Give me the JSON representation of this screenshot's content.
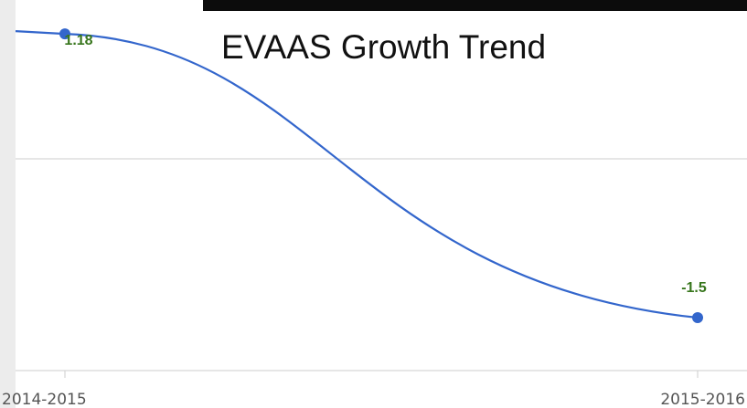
{
  "chart_data": {
    "type": "line",
    "title": "EVAAS Growth Trend",
    "xlabel": "",
    "ylabel": "",
    "categories": [
      "2014-2015",
      "2015-2016"
    ],
    "series": [
      {
        "values": [
          1.18,
          -1.5
        ],
        "color": "#3366cc"
      }
    ],
    "data_labels": [
      "1.18",
      "-1.5"
    ],
    "data_label_color": "#38761d",
    "ylim": [
      -2,
      1.5
    ],
    "grid": true
  }
}
